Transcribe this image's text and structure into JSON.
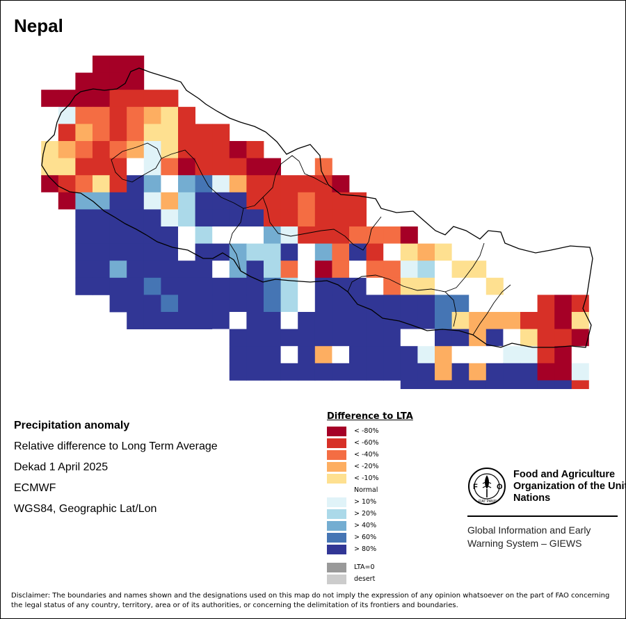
{
  "title": "Nepal",
  "info": {
    "heading": "Precipitation anomaly",
    "line1": "Relative difference to Long Term Average",
    "line2": "Dekad 1 April 2025",
    "line3": "ECMWF",
    "line4": "WGS84, Geographic Lat/Lon"
  },
  "legend": {
    "title": "Difference to LTA",
    "items": [
      {
        "label": "< -80%",
        "color": "#a50026"
      },
      {
        "label": "< -60%",
        "color": "#d73027"
      },
      {
        "label": "< -40%",
        "color": "#f46d43"
      },
      {
        "label": "< -20%",
        "color": "#fdae61"
      },
      {
        "label": "< -10%",
        "color": "#fee090"
      },
      {
        "label": "Normal",
        "color": "#ffffff"
      },
      {
        "label": "> 10%",
        "color": "#e0f3f8"
      },
      {
        "label": "> 20%",
        "color": "#abd9e9"
      },
      {
        "label": "> 40%",
        "color": "#74add1"
      },
      {
        "label": "> 60%",
        "color": "#4575b4"
      },
      {
        "label": "> 80%",
        "color": "#313695"
      }
    ],
    "extra": [
      {
        "label": "LTA=0",
        "color": "#999999"
      },
      {
        "label": "desert",
        "color": "#cccccc"
      }
    ]
  },
  "fao": {
    "name": "Food and Agriculture Organization of the United Nations",
    "giews": "Global Information and Early Warning System – GIEWS",
    "logo_text": "FAO",
    "logo_motto": "FIAT PANIS"
  },
  "disclaimer": "Disclaimer: The boundaries and names shown and the designations used on this map do not imply the expression of any opinion whatsoever on the part of FAO concerning the legal status of any country, territory, area or of its authorities, or concerning the delimitation of its frontiers and boundaries.",
  "map": {
    "color_codes": {
      "A": "#a50026",
      "B": "#d73027",
      "C": "#f46d43",
      "D": "#fdae61",
      "E": "#fee090",
      "N": "#ffffff",
      "F": "#e0f3f8",
      "G": "#abd9e9",
      "H": "#74add1",
      "I": "#4575b4",
      "J": "#313695"
    },
    "grid": [
      "...AAA.............................",
      "..AAAA.............................",
      "AAAABBBB...........................",
      "NFCCBCDEB..........................",
      "NBDCBCEEBBB........................",
      "EDCBCDFEBBBAB......................",
      "EEBBBNFCABBBAA..C..................",
      "ABCEBJHNHIFDBBBBBA.................",
      "NAHHJJFDGJJJBBBCBBB................",
      ".NJJJJJFGJJJJBBCBBB................",
      "..JJJJJJNGNNNHFBBBCCCA.............",
      "..JJJJJJNJJHGGJNHCJBNEDEN..........",
      "..JJHJJJJJNHJGCNACNCCFGNEE.........",
      "..JJJJIJJJJJJIGNJJJNCEENNNE.....BA.",
      "....JJJIJJJJJIGNJJJJJJJIINNNNBABEAA",
      ".....JJJJJJNJJNJJJJJJJJIEDDDBBAENBA",
      "..........NJJJJJJJJJJNNJJDJNEBBANDD",
      "..........NJJJNJDNJJJJFDNNNFFBANDDB",
      "..........NJJJJJJJJJJJJDJDJJJAAFBBB",
      ".....................JJJJJJJJJJBCDD",
      "......................JJJJJJJJJECDN",
      "......................JJJJJJJJJNCNN",
      "..........................JJJJINJFF",
      "............................JJ.JJJJ"
    ],
    "cells_visible_count": 23
  }
}
